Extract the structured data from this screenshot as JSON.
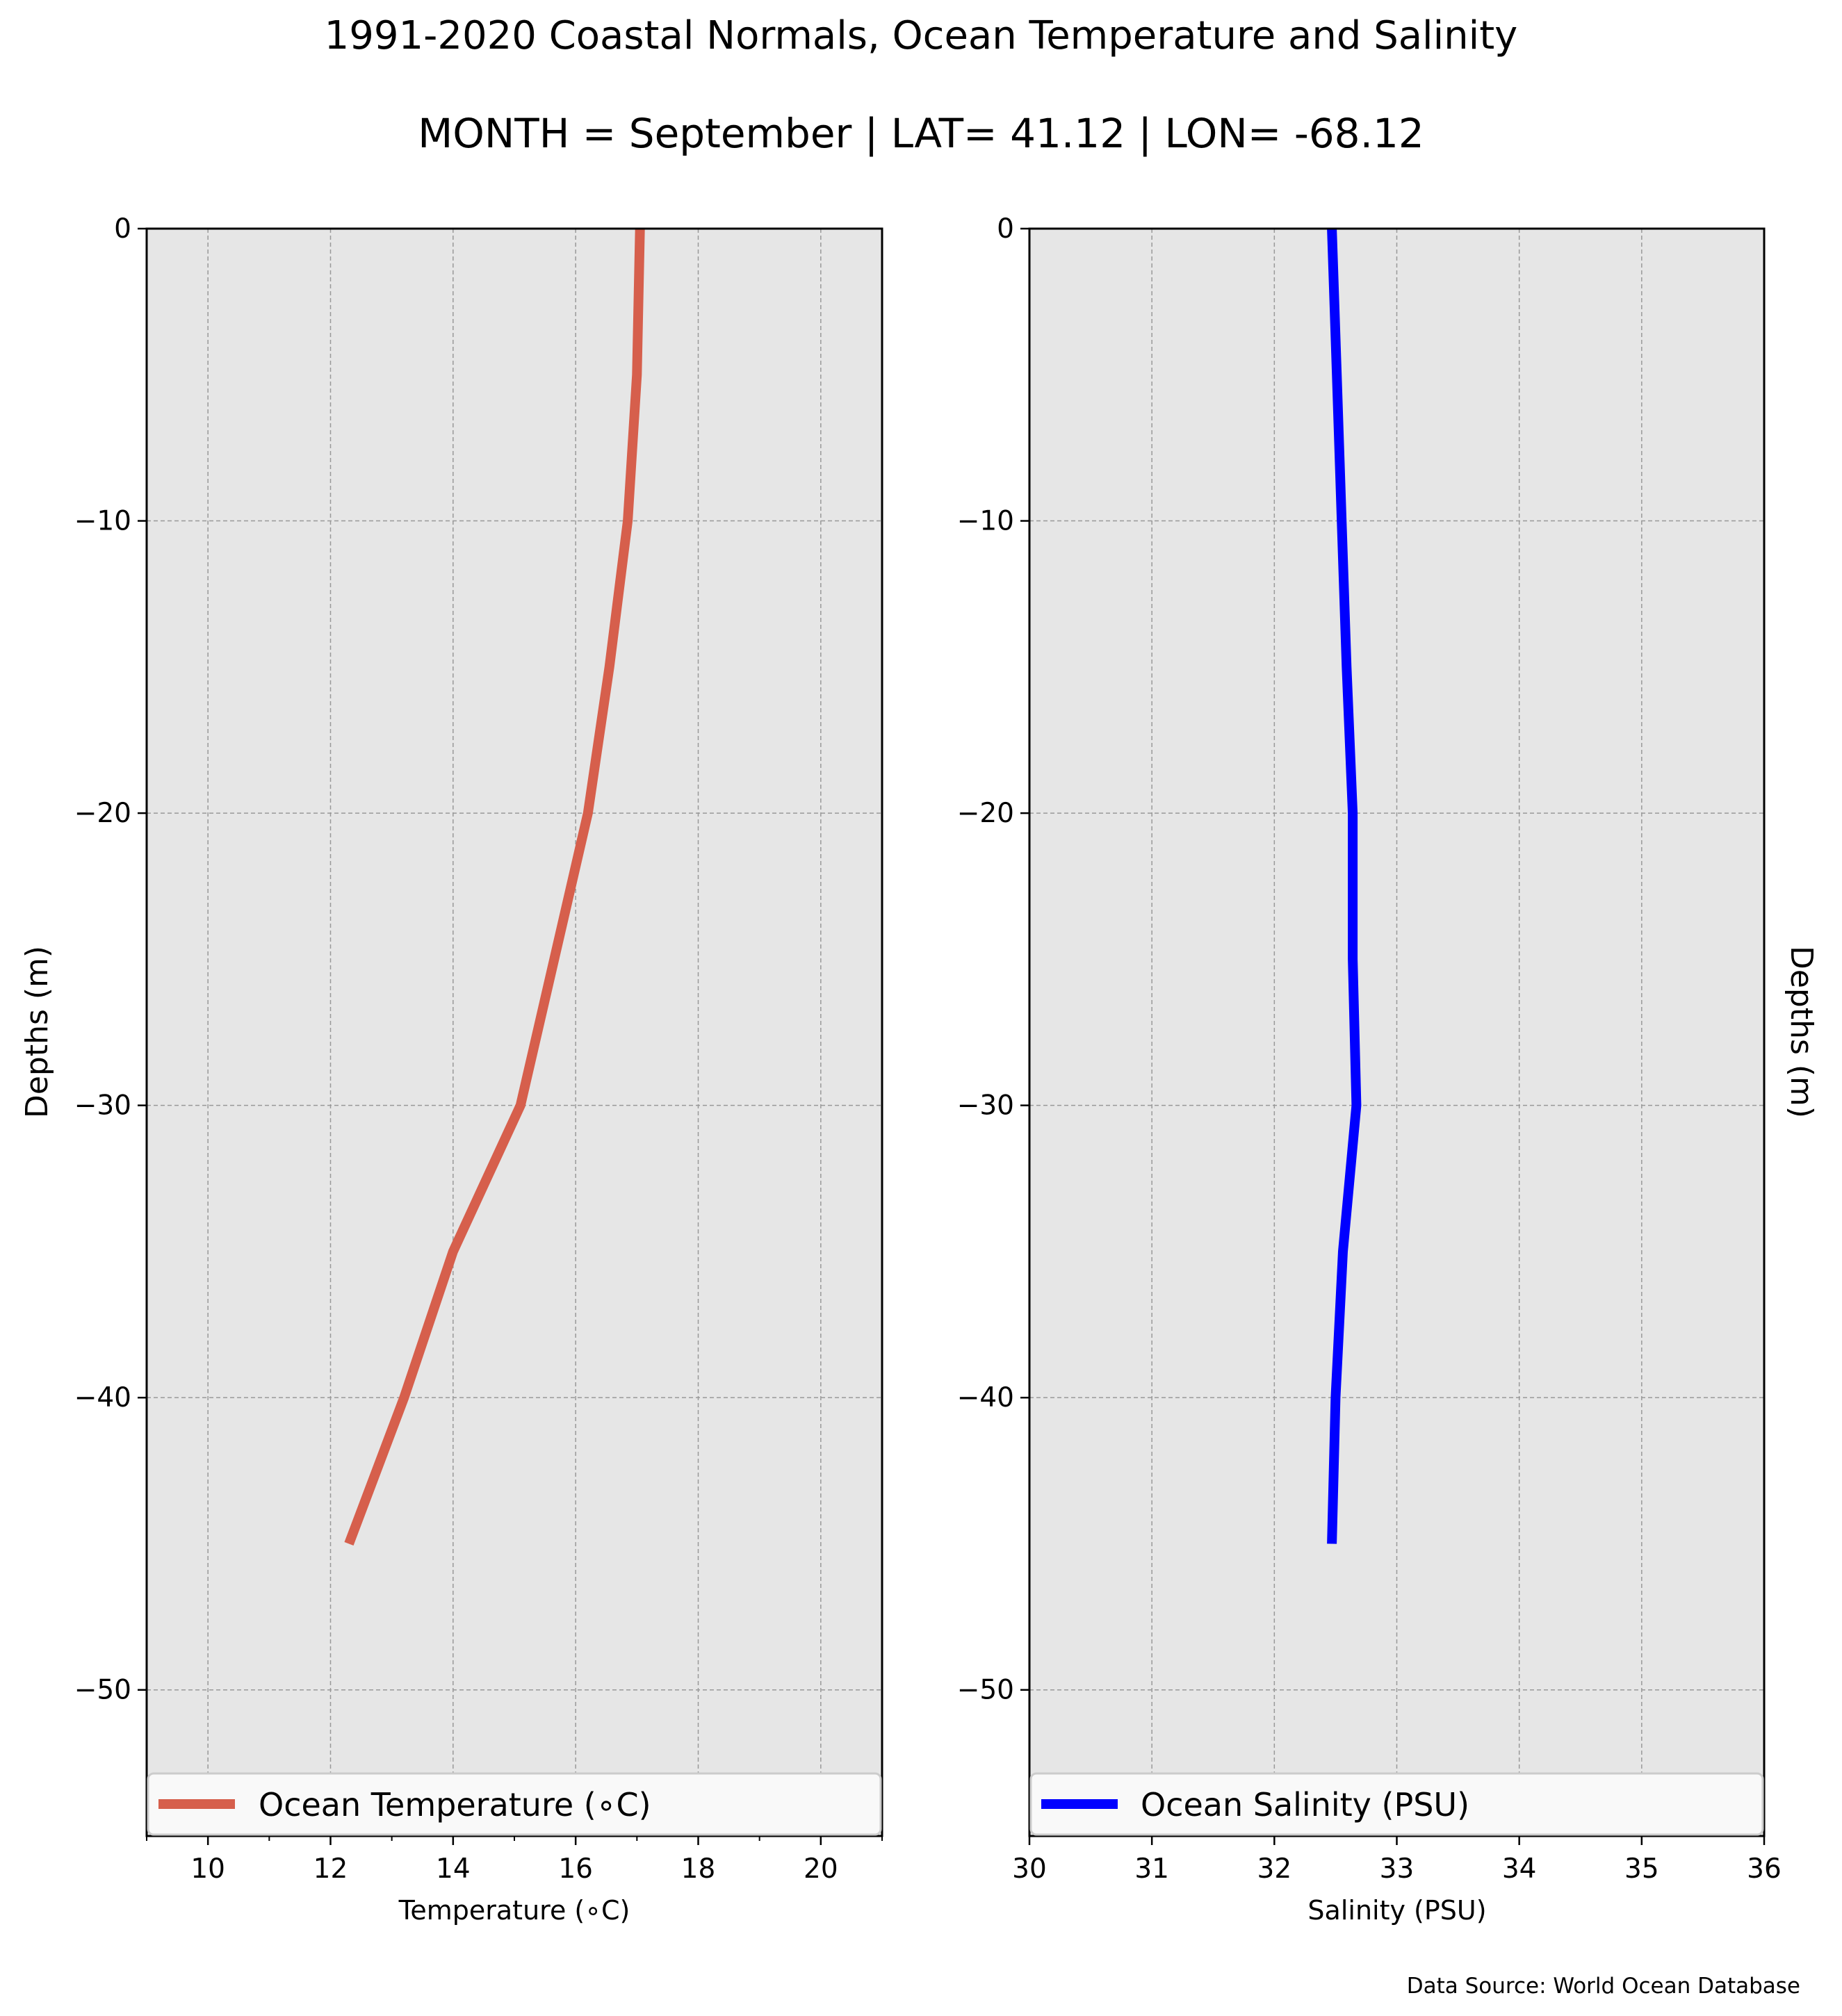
{
  "figure": {
    "title_line1": "1991-2020 Coastal Normals, Ocean Temperature and Salinity",
    "title_line2": "MONTH = September | LAT= 41.12 | LON= -68.12",
    "source_note": "Data Source: World Ocean Database"
  },
  "colors": {
    "temperature_line": "#d65f4c",
    "salinity_line": "#0000ff",
    "plot_background": "#e6e6e6",
    "grid": "#999999",
    "legend_background": "#f9f9f9"
  },
  "chart_data": [
    {
      "type": "line",
      "xlabel": "Temperature (∘C)",
      "ylabel": "Depths (m)",
      "xlim": [
        9,
        21
      ],
      "ylim": [
        -55,
        0
      ],
      "xticks": [
        10,
        12,
        14,
        16,
        18,
        20
      ],
      "yticks": [
        0,
        -10,
        -20,
        -30,
        -40,
        -50
      ],
      "grid": true,
      "legend_location": "bottom",
      "series": [
        {
          "name": "Ocean Temperature (∘C)",
          "x": [
            17.05,
            17.0,
            16.85,
            16.55,
            16.2,
            15.65,
            15.1,
            14.0,
            13.2,
            12.3
          ],
          "y": [
            0,
            -5,
            -10,
            -15,
            -20,
            -25,
            -30,
            -35,
            -40,
            -45
          ]
        }
      ]
    },
    {
      "type": "line",
      "xlabel": "Salinity (PSU)",
      "ylabel": "Depths (m)",
      "xlim": [
        30,
        36
      ],
      "ylim": [
        -55,
        0
      ],
      "xticks": [
        30,
        31,
        32,
        33,
        34,
        35,
        36
      ],
      "yticks": [
        0,
        -10,
        -20,
        -30,
        -40,
        -50
      ],
      "grid": true,
      "legend_location": "bottom",
      "series": [
        {
          "name": "Ocean Salinity (PSU)",
          "x": [
            32.47,
            32.51,
            32.55,
            32.59,
            32.64,
            32.64,
            32.67,
            32.56,
            32.5,
            32.47
          ],
          "y": [
            0,
            -5,
            -10,
            -15,
            -20,
            -25,
            -30,
            -35,
            -40,
            -45
          ]
        }
      ]
    }
  ]
}
